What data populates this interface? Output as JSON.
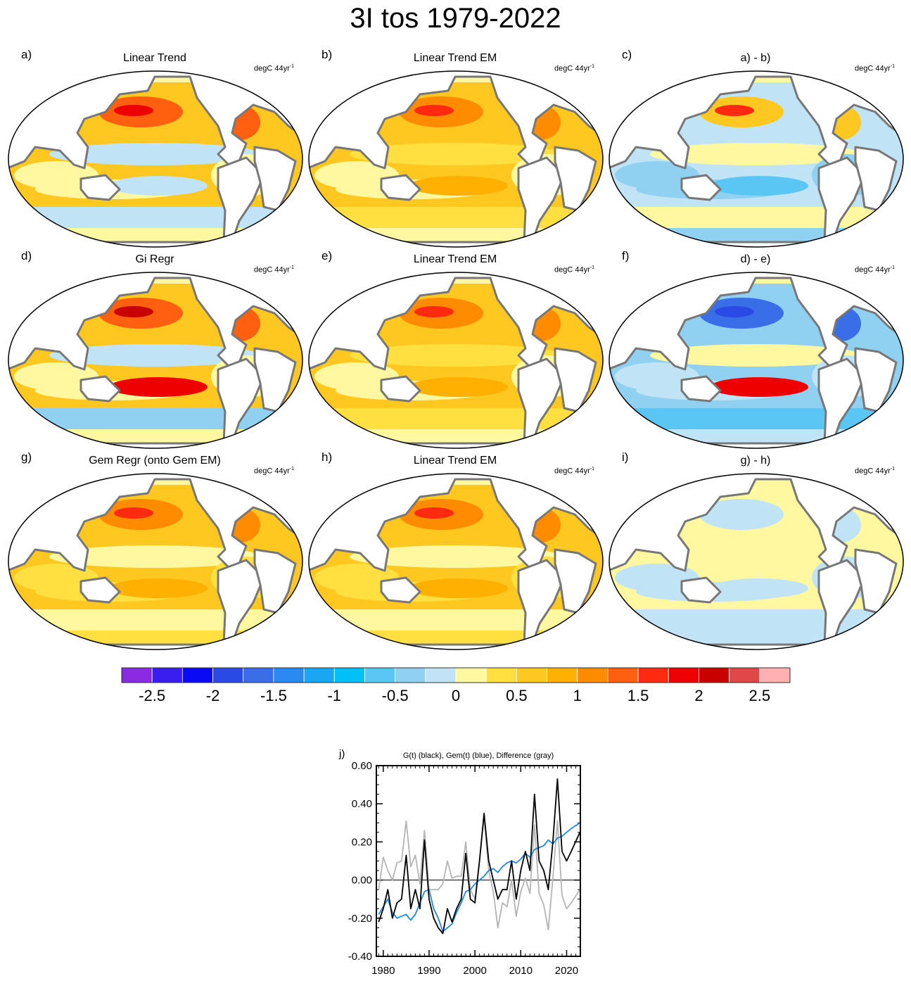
{
  "title": "3I tos 1979-2022",
  "panels": [
    {
      "letter": "a)",
      "title": "Linear Trend",
      "units": "degC 44yr",
      "units_sup": "-1"
    },
    {
      "letter": "b)",
      "title": "Linear Trend EM",
      "units": "degC 44yr",
      "units_sup": "-1"
    },
    {
      "letter": "c)",
      "title": "a) - b)",
      "units": "degC 44yr",
      "units_sup": "-1"
    },
    {
      "letter": "d)",
      "title": "Gi Regr",
      "units": "degC 44yr",
      "units_sup": "-1"
    },
    {
      "letter": "e)",
      "title": "Linear Trend EM",
      "units": "degC 44yr",
      "units_sup": "-1"
    },
    {
      "letter": "f)",
      "title": "d) - e)",
      "units": "degC 44yr",
      "units_sup": "-1"
    },
    {
      "letter": "g)",
      "title": "Gem Regr (onto Gem EM)",
      "units": "degC 44yr",
      "units_sup": "-1"
    },
    {
      "letter": "h)",
      "title": "Linear Trend EM",
      "units": "degC 44yr",
      "units_sup": "-1"
    },
    {
      "letter": "i)",
      "title": "g) - h)",
      "units": "degC 44yr",
      "units_sup": "-1"
    }
  ],
  "colorbar": {
    "colors": [
      "#8a2be2",
      "#3a1ef0",
      "#0a0af5",
      "#2a4ae6",
      "#3a6ee8",
      "#2a8af0",
      "#1aa6f0",
      "#00c0f8",
      "#5ac6f4",
      "#90d0f0",
      "#c0e4f6",
      "#fff8a0",
      "#ffe040",
      "#ffc820",
      "#ffb000",
      "#ff8c00",
      "#ff6010",
      "#ff2a10",
      "#ee0000",
      "#c80000",
      "#e04848",
      "#ffb0b0"
    ],
    "tick_labels": [
      "-2.5",
      "-2",
      "-1.5",
      "-1",
      "-0.5",
      "0",
      "0.5",
      "1",
      "1.5",
      "2",
      "2.5"
    ]
  },
  "chart_data": {
    "type": "line",
    "panel_letter": "j)",
    "title": "G(t)  (black), Gem(t) (blue), Difference (gray)",
    "xlim": [
      1978.5,
      2023
    ],
    "ylim": [
      -0.4,
      0.6
    ],
    "x_ticks": [
      1980,
      1990,
      2000,
      2010,
      2020
    ],
    "x_tick_labels": [
      "1980",
      "1990",
      "2000",
      "2010",
      "2020"
    ],
    "y_ticks": [
      -0.4,
      -0.2,
      0.0,
      0.2,
      0.4,
      0.6
    ],
    "y_tick_labels": [
      "-0.40",
      "-0.20",
      "0.00",
      "0.20",
      "0.40",
      "0.60"
    ],
    "zero_line": true,
    "series": [
      {
        "color": "#1e88e5",
        "x": [
          1979,
          1980,
          1981,
          1982,
          1983,
          1984,
          1985,
          1986,
          1987,
          1988,
          1989,
          1990,
          1991,
          1992,
          1993,
          1994,
          1995,
          1996,
          1997,
          1998,
          1999,
          2000,
          2001,
          2002,
          2003,
          2004,
          2005,
          2006,
          2007,
          2008,
          2009,
          2010,
          2011,
          2012,
          2013,
          2014,
          2015,
          2016,
          2017,
          2018,
          2019,
          2020,
          2021,
          2022.9
        ],
        "y": [
          -0.18,
          -0.14,
          -0.1,
          -0.17,
          -0.2,
          -0.19,
          -0.18,
          -0.21,
          -0.18,
          -0.12,
          -0.06,
          -0.05,
          -0.15,
          -0.2,
          -0.27,
          -0.25,
          -0.23,
          -0.17,
          -0.12,
          -0.06,
          -0.05,
          -0.02,
          0.0,
          0.02,
          0.05,
          0.06,
          0.04,
          0.07,
          0.09,
          0.1,
          0.09,
          0.11,
          0.14,
          0.12,
          0.16,
          0.17,
          0.18,
          0.21,
          0.19,
          0.22,
          0.23,
          0.25,
          0.27,
          0.3
        ]
      },
      {
        "color": "#000000",
        "x": [
          1979,
          1980,
          1981,
          1982,
          1983,
          1984,
          1985,
          1986,
          1987,
          1988,
          1989,
          1990,
          1991,
          1992,
          1993,
          1994,
          1995,
          1996,
          1997,
          1998,
          1999,
          2000,
          2001,
          2002,
          2003,
          2004,
          2005,
          2006,
          2007,
          2008,
          2009,
          2010,
          2011,
          2012,
          2013,
          2014,
          2015,
          2016,
          2017,
          2018,
          2019,
          2020,
          2021,
          2022.9
        ],
        "y": [
          -0.22,
          -0.15,
          -0.05,
          -0.2,
          -0.12,
          -0.1,
          0.13,
          -0.15,
          -0.05,
          -0.15,
          0.21,
          -0.1,
          -0.2,
          -0.25,
          -0.28,
          -0.15,
          -0.22,
          -0.15,
          -0.1,
          0.14,
          -0.1,
          -0.12,
          0.1,
          0.35,
          0.1,
          0.0,
          -0.1,
          -0.05,
          -0.05,
          0.1,
          -0.1,
          0.05,
          0.15,
          0.05,
          0.45,
          0.1,
          0.05,
          -0.05,
          0.2,
          0.53,
          0.15,
          0.1,
          0.15,
          0.25
        ]
      },
      {
        "color": "#b4b4b4",
        "x": [
          1979,
          1980,
          1981,
          1982,
          1983,
          1984,
          1985,
          1986,
          1987,
          1988,
          1989,
          1990,
          1991,
          1992,
          1993,
          1994,
          1995,
          1996,
          1997,
          1998,
          1999,
          2000,
          2001,
          2002,
          2003,
          2004,
          2005,
          2006,
          2007,
          2008,
          2009,
          2010,
          2011,
          2012,
          2013,
          2014,
          2015,
          2016,
          2017,
          2018,
          2019,
          2020,
          2021,
          2022.9
        ],
        "y": [
          -0.05,
          0.12,
          0.05,
          0.0,
          0.09,
          0.1,
          0.31,
          0.07,
          0.13,
          -0.02,
          0.26,
          -0.05,
          -0.05,
          -0.05,
          -0.02,
          0.1,
          0.01,
          0.02,
          0.02,
          0.2,
          -0.05,
          -0.1,
          0.1,
          0.33,
          0.05,
          -0.06,
          -0.25,
          -0.12,
          -0.14,
          0.0,
          -0.19,
          -0.06,
          0.01,
          -0.07,
          0.29,
          -0.07,
          -0.13,
          -0.26,
          0.01,
          0.31,
          -0.08,
          -0.15,
          -0.12,
          -0.05
        ]
      }
    ]
  }
}
